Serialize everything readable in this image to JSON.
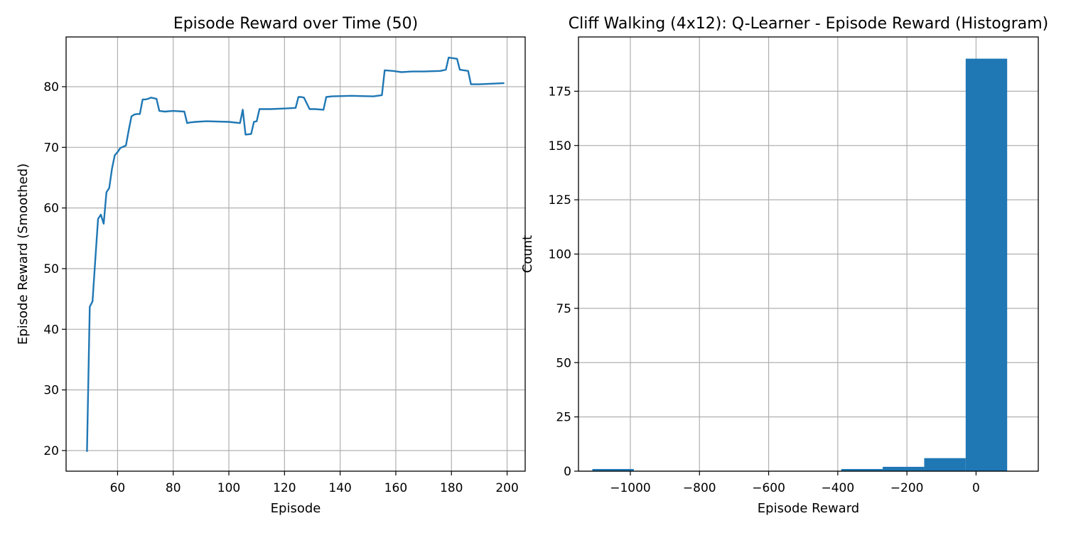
{
  "colors": {
    "series": "#1f77b4",
    "grid": "#b0b0b0",
    "axes": "#000000"
  },
  "chart_data": [
    {
      "type": "line",
      "title": "Episode Reward over Time (50)",
      "xlabel": "Episode",
      "ylabel": "Episode Reward (Smoothed)",
      "xlim": [
        41.5,
        206.5
      ],
      "ylim": [
        16.6,
        88.2
      ],
      "xticks": [
        60,
        80,
        100,
        120,
        140,
        160,
        180,
        200
      ],
      "yticks": [
        20,
        30,
        40,
        50,
        60,
        70,
        80
      ],
      "grid": true,
      "series": [
        {
          "x": [
            49,
            50,
            51,
            52,
            53,
            54,
            55,
            56,
            57,
            58,
            59,
            60,
            61,
            62,
            63,
            64,
            65,
            66,
            67,
            68,
            69,
            70,
            71,
            72,
            73,
            74,
            75,
            77,
            80,
            84,
            85,
            86,
            88,
            92,
            100,
            104,
            105,
            106,
            108,
            109,
            110,
            111,
            115,
            120,
            124,
            125,
            126,
            127,
            129,
            131,
            134,
            135,
            137,
            144,
            152,
            155,
            156,
            159,
            162,
            166,
            170,
            176,
            178,
            179,
            182,
            183,
            186,
            187,
            190,
            195,
            199
          ],
          "y": [
            19.8,
            43.7,
            44.6,
            51.5,
            58.2,
            58.9,
            57.4,
            62.6,
            63.3,
            66.5,
            68.7,
            69.2,
            69.9,
            70.1,
            70.3,
            72.8,
            75.1,
            75.4,
            75.5,
            75.5,
            77.9,
            77.9,
            78.0,
            78.2,
            78.1,
            78.0,
            76.0,
            75.9,
            76.0,
            75.9,
            74.0,
            74.1,
            74.2,
            74.3,
            74.2,
            74.0,
            76.2,
            72.1,
            72.2,
            74.2,
            74.3,
            76.3,
            76.3,
            76.4,
            76.5,
            78.3,
            78.3,
            78.2,
            76.3,
            76.3,
            76.2,
            78.3,
            78.4,
            78.5,
            78.4,
            78.6,
            82.7,
            82.6,
            82.4,
            82.5,
            82.5,
            82.6,
            82.8,
            84.8,
            84.6,
            82.8,
            82.6,
            80.4,
            80.4,
            80.5,
            80.6
          ]
        }
      ]
    },
    {
      "type": "bar",
      "subtype": "histogram",
      "title": "Cliff Walking (4x12): Q-Learner - Episode Reward (Histogram)",
      "xlabel": "Episode Reward",
      "ylabel": "Count",
      "xlim": [
        -1150,
        180
      ],
      "ylim": [
        0,
        200
      ],
      "xticks": [
        -1000,
        -800,
        -600,
        -400,
        -200,
        0
      ],
      "xtick_labels": [
        "−1000",
        "−800",
        "−600",
        "−400",
        "−200",
        "0"
      ],
      "yticks": [
        0,
        25,
        50,
        75,
        100,
        125,
        150,
        175
      ],
      "grid": true,
      "bin_edges": [
        -1110,
        -990,
        -870,
        -750,
        -630,
        -510,
        -390,
        -270,
        -150,
        -30,
        90
      ],
      "values": [
        1,
        0,
        0,
        0,
        0,
        0,
        1,
        2,
        6,
        190
      ]
    }
  ]
}
